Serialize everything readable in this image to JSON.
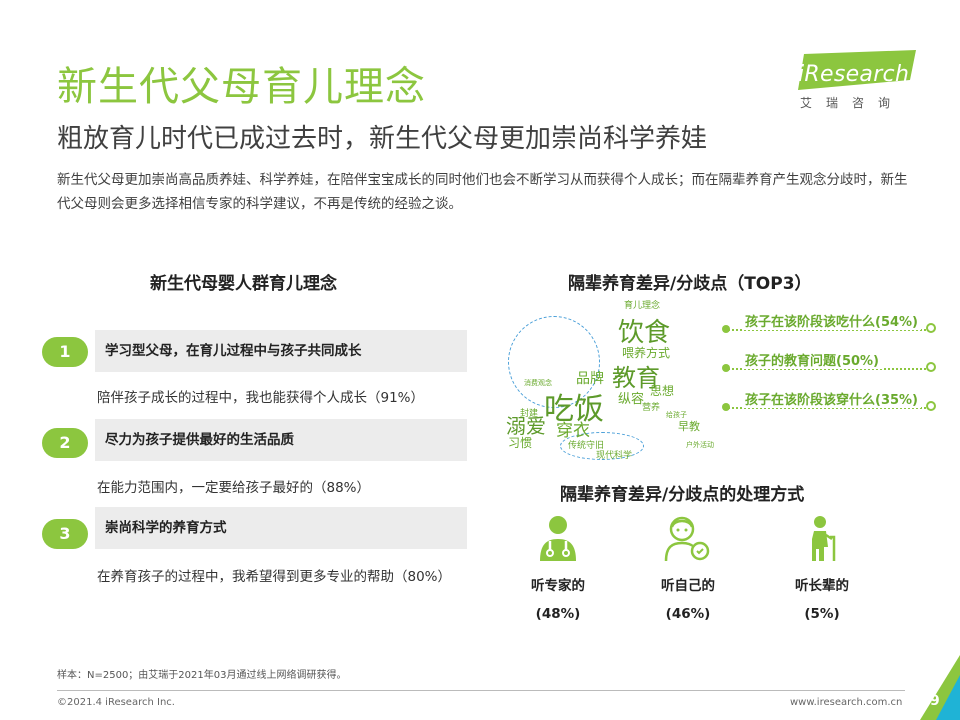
{
  "header": {
    "title": "新生代父母育儿理念",
    "subtitle": "粗放育儿时代已成过去时，新生代父母更加崇尚科学养娃",
    "intro": "新生代父母更加崇尚高品质养娃、科学养娃，在陪伴宝宝成长的同时他们也会不断学习从而获得个人成长；而在隔辈养育产生观念分歧时，新生代父母则会更多选择相信专家的科学建议，不再是传统的经验之谈。"
  },
  "logo": {
    "name": "iResearch",
    "cn": "艾瑞咨询"
  },
  "left": {
    "title": "新生代母婴人群育儿理念",
    "items": [
      {
        "num": "1",
        "headline": "学习型父母，在育儿过程中与孩子共同成长",
        "detail": "陪伴孩子成长的过程中，我也能获得个人成长（91%）"
      },
      {
        "num": "2",
        "headline": "尽力为孩子提供最好的生活品质",
        "detail": "在能力范围内，一定要给孩子最好的（88%）"
      },
      {
        "num": "3",
        "headline": "崇尚科学的养育方式",
        "detail": "在养育孩子的过程中，我希望得到更多专业的帮助（80%）"
      }
    ]
  },
  "right": {
    "divergence_title": "隔辈养育差异/分歧点（TOP3）",
    "cloud_words": [
      "饮食",
      "育儿理念",
      "喂养方式",
      "教育",
      "品牌",
      "纵容",
      "思想",
      "吃饭",
      "营养",
      "溺爱",
      "穿衣",
      "习惯",
      "封建",
      "早教",
      "传统守旧",
      "现代科学",
      "给孩子",
      "消费观念",
      "户外活动"
    ],
    "top3": [
      "孩子在该阶段该吃什么(54%)",
      "孩子的教育问题(50%)",
      "孩子在该阶段该穿什么(35%)"
    ],
    "handling_title": "隔辈养育差异/分歧点的处理方式",
    "handling": [
      {
        "label": "听专家的",
        "pct": "(48%)",
        "icon": "expert-icon"
      },
      {
        "label": "听自己的",
        "pct": "(46%)",
        "icon": "self-icon"
      },
      {
        "label": "听长辈的",
        "pct": "(5%)",
        "icon": "elder-icon"
      }
    ]
  },
  "footer": {
    "note": "样本：N=2500；由艾瑞于2021年03月通过线上网络调研获得。",
    "copyright": "©2021.4 iResearch Inc.",
    "website": "www.iresearch.com.cn",
    "page": "9"
  },
  "colors": {
    "accent": "#8cc63f",
    "accent_dark": "#6aaa2e",
    "cloud_ring": "#4a9fd8"
  }
}
